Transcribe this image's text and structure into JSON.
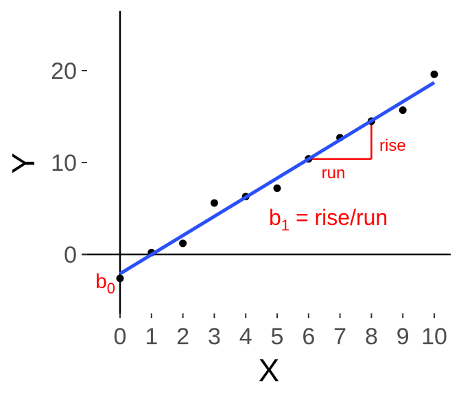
{
  "chart_data": {
    "type": "scatter",
    "title": "",
    "xlabel": "X",
    "ylabel": "Y",
    "xlim": [
      0,
      10
    ],
    "ylim": [
      -6.5,
      26.5
    ],
    "x_ticks": [
      "0",
      "1",
      "2",
      "3",
      "4",
      "5",
      "6",
      "7",
      "8",
      "9",
      "10"
    ],
    "x_tick_values": [
      0,
      1,
      2,
      3,
      4,
      5,
      6,
      7,
      8,
      9,
      10
    ],
    "y_ticks": [
      "0",
      "10",
      "20"
    ],
    "y_tick_values": [
      0,
      10,
      20
    ],
    "grid": false,
    "points": {
      "x": [
        0,
        1,
        2,
        3,
        4,
        5,
        6,
        7,
        8,
        9,
        10
      ],
      "y": [
        -2.6,
        0.2,
        1.2,
        5.6,
        6.3,
        7.2,
        10.4,
        12.7,
        14.5,
        15.7,
        19.6
      ]
    },
    "fit_line": {
      "intercept": -2.1,
      "slope": 2.08,
      "color": "#2b50f7"
    },
    "point_color": "#000000",
    "annotation_color": "#ff0000",
    "annotations": {
      "run_label": "run",
      "rise_label": "rise",
      "b0_base": "b",
      "b0_sub": "0",
      "b1_base": "b",
      "b1_sub": "1",
      "b1_rest": " = rise/run"
    },
    "triangle": {
      "x_start": 6,
      "x_end": 8
    }
  }
}
